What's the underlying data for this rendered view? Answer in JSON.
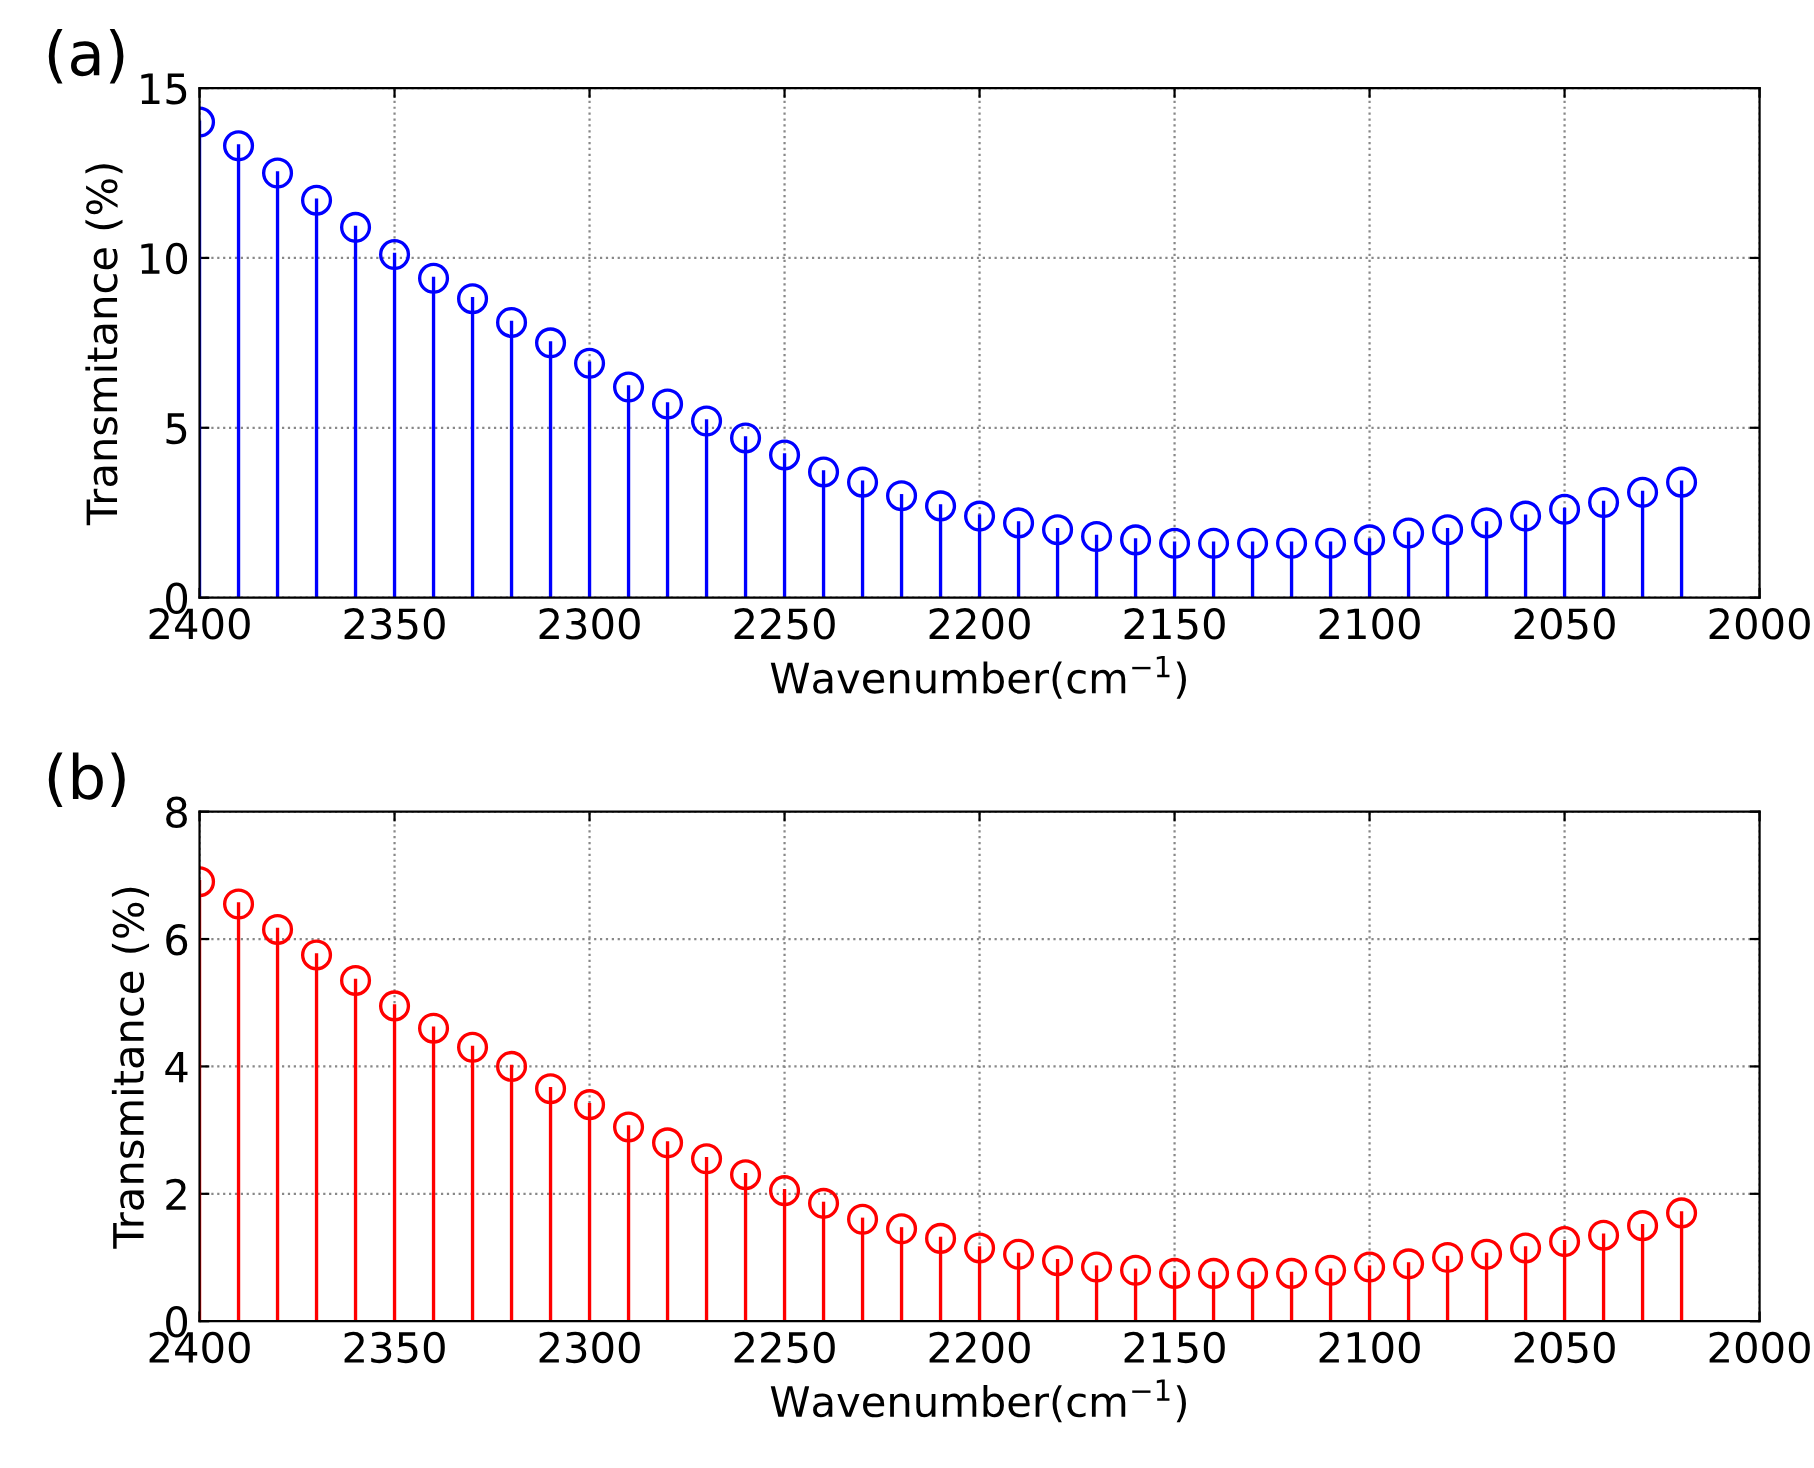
{
  "chart_data": [
    {
      "type": "lollipop",
      "title": "(a)",
      "xlabel": "Wavenumber(cm$^{−1}$)",
      "ylabel": "Transmitance (%)",
      "xlim": [
        2400,
        2000
      ],
      "xticks": [
        2400,
        2350,
        2300,
        2250,
        2200,
        2150,
        2100,
        2050,
        2000
      ],
      "ylim": [
        0,
        15
      ],
      "yticks": [
        0,
        5,
        10,
        15
      ],
      "grid": true,
      "marker": "circle",
      "x": [
        2400,
        2390,
        2380,
        2370,
        2360,
        2350,
        2340,
        2330,
        2320,
        2310,
        2300,
        2290,
        2280,
        2270,
        2260,
        2250,
        2240,
        2230,
        2220,
        2210,
        2200,
        2190,
        2180,
        2170,
        2160,
        2150,
        2140,
        2130,
        2120,
        2110,
        2100,
        2090,
        2080,
        2070,
        2060,
        2050,
        2040,
        2030,
        2020
      ],
      "series": [
        {
          "color": "#0000ff",
          "values": [
            14.0,
            13.3,
            12.5,
            11.7,
            10.9,
            10.1,
            9.4,
            8.8,
            8.1,
            7.5,
            6.9,
            6.2,
            5.7,
            5.2,
            4.7,
            4.2,
            3.7,
            3.4,
            3.0,
            2.7,
            2.4,
            2.2,
            2.0,
            1.8,
            1.7,
            1.6,
            1.6,
            1.6,
            1.6,
            1.6,
            1.7,
            1.9,
            2.0,
            2.2,
            2.4,
            2.6,
            2.8,
            3.1,
            3.4
          ]
        }
      ]
    },
    {
      "type": "lollipop",
      "title": "(b)",
      "xlabel": "Wavenumber(cm$^{−1}$)",
      "ylabel": "Transmitance (%)",
      "xlim": [
        2400,
        2000
      ],
      "xticks": [
        2400,
        2350,
        2300,
        2250,
        2200,
        2150,
        2100,
        2050,
        2000
      ],
      "ylim": [
        0,
        8
      ],
      "yticks": [
        0,
        2,
        4,
        6,
        8
      ],
      "grid": true,
      "marker": "circle",
      "x": [
        2400,
        2390,
        2380,
        2370,
        2360,
        2350,
        2340,
        2330,
        2320,
        2310,
        2300,
        2290,
        2280,
        2270,
        2260,
        2250,
        2240,
        2230,
        2220,
        2210,
        2200,
        2190,
        2180,
        2170,
        2160,
        2150,
        2140,
        2130,
        2120,
        2110,
        2100,
        2090,
        2080,
        2070,
        2060,
        2050,
        2040,
        2030,
        2020
      ],
      "series": [
        {
          "color": "#ff0000",
          "values": [
            6.9,
            6.55,
            6.15,
            5.75,
            5.35,
            4.95,
            4.6,
            4.3,
            4.0,
            3.65,
            3.4,
            3.05,
            2.8,
            2.55,
            2.3,
            2.05,
            1.85,
            1.6,
            1.45,
            1.3,
            1.15,
            1.05,
            0.95,
            0.85,
            0.8,
            0.75,
            0.75,
            0.75,
            0.75,
            0.8,
            0.85,
            0.9,
            1.0,
            1.05,
            1.15,
            1.25,
            1.35,
            1.5,
            1.7
          ]
        }
      ]
    }
  ]
}
